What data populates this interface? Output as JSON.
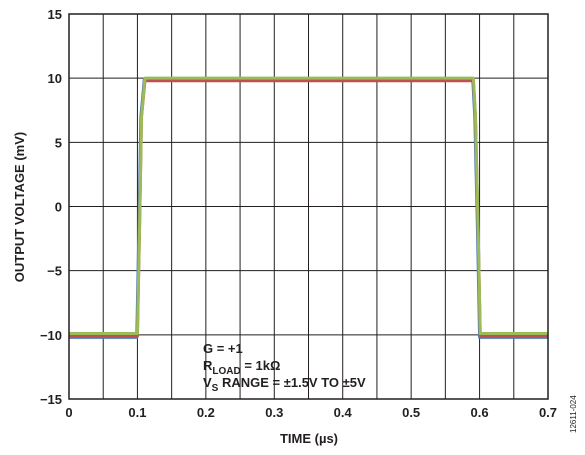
{
  "chart_data": {
    "type": "line",
    "xlabel": "TIME (µs)",
    "ylabel": "OUTPUT VOLTAGE (mV)",
    "xlim": [
      0,
      0.7
    ],
    "ylim": [
      -15,
      15
    ],
    "x_ticks": [
      0,
      0.05,
      0.1,
      0.15,
      0.2,
      0.25,
      0.3,
      0.35,
      0.4,
      0.45,
      0.5,
      0.55,
      0.6,
      0.65,
      0.7
    ],
    "x_tick_labels": [
      "0",
      "0.1",
      "0.2",
      "0.3",
      "0.4",
      "0.5",
      "0.6",
      "0.7"
    ],
    "y_ticks": [
      -15,
      -10,
      -5,
      0,
      5,
      10,
      15
    ],
    "y_tick_labels": [
      "−15",
      "−10",
      "−5",
      "0",
      "5",
      "10",
      "15"
    ],
    "grid": true,
    "series": [
      {
        "color": "#4a7ebb",
        "x": [
          0,
          0.099,
          0.102,
          0.105,
          0.11,
          0.59,
          0.593,
          0.597,
          0.6,
          0.7
        ],
        "y": [
          -10.2,
          -10.2,
          -2,
          7,
          9.9,
          9.9,
          7,
          -2,
          -10.2,
          -10.2
        ]
      },
      {
        "color": "#c0504d",
        "x": [
          0,
          0.1,
          0.103,
          0.106,
          0.111,
          0.591,
          0.594,
          0.598,
          0.601,
          0.7
        ],
        "y": [
          -10.1,
          -10.1,
          -2,
          7,
          9.8,
          9.8,
          7,
          -2,
          -10.1,
          -10.1
        ]
      },
      {
        "color": "#9bbb59",
        "x": [
          0,
          0.1,
          0.103,
          0.106,
          0.111,
          0.591,
          0.594,
          0.598,
          0.601,
          0.7
        ],
        "y": [
          -9.9,
          -9.9,
          -2,
          7,
          10.0,
          10.0,
          7,
          -2,
          -9.9,
          -9.9
        ]
      }
    ],
    "annotations": {
      "line1": "G = +1",
      "line2_main": "R",
      "line2_sub": "LOAD",
      "line2_rest": " = 1kΩ",
      "line3_main": "V",
      "line3_sub": "S",
      "line3_rest": " RANGE = ±1.5V TO ±5V"
    },
    "figure_id": "12611-024"
  }
}
